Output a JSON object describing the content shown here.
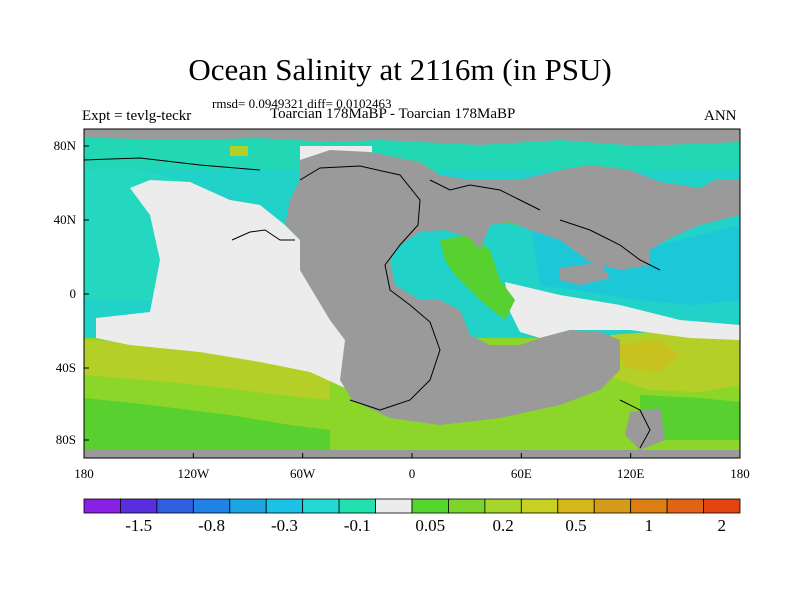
{
  "title": "Ocean Salinity at 2116m (in PSU)",
  "stats": "rmsd= 0.0949321  diff= 0.0102463",
  "left_label": "Expt = tevlg-teckr",
  "center_label": "Toarcian 178MaBP - Toarcian 178MaBP",
  "right_label": "ANN",
  "map": {
    "x_ticks": [
      "180",
      "120W",
      "60W",
      "0",
      "60E",
      "120E",
      "180"
    ],
    "y_ticks": [
      "80N",
      "40N",
      "0",
      "40S",
      "80S"
    ]
  },
  "colorbar": {
    "colors": [
      "#8a1fe6",
      "#5a2ee0",
      "#2f5fe0",
      "#1e82e6",
      "#1aa6e3",
      "#19c2e6",
      "#24d8d4",
      "#23e0b0",
      "#ececec",
      "#55d62e",
      "#7cd42c",
      "#a6d62a",
      "#c8d024",
      "#d4b81c",
      "#d49c18",
      "#dc7e12",
      "#e06414",
      "#e44410"
    ],
    "labels": [
      "-1.5",
      "-0.8",
      "-0.3",
      "-0.1",
      "0.05",
      "0.2",
      "0.5",
      "1",
      "2"
    ]
  },
  "colors": {
    "land": "#9a9a9a",
    "near_zero": "#ececec",
    "cyan": "#20d2c8",
    "teal": "#22d8b4",
    "lime": "#8cd62a",
    "green": "#58d030",
    "yellowgreen": "#b4d028"
  }
}
